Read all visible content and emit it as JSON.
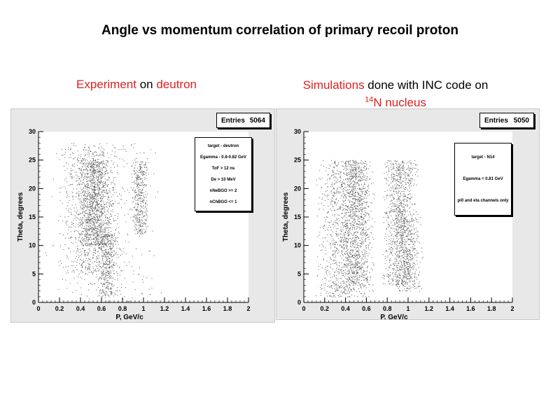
{
  "title": "Angle vs momentum correlation of primary recoil proton",
  "captions": {
    "left": {
      "highlight": "Experiment",
      "rest": " on ",
      "highlight2": "deutron"
    },
    "right": {
      "highlight": "Simulations",
      "rest": " done with INC code on",
      "sup": "14",
      "line2": "N nucleus"
    }
  },
  "colors": {
    "accent": "#e02020",
    "panel": "#e8e8e8",
    "plot": "#ffffff"
  },
  "chart_data": [
    {
      "type": "scatter",
      "entries_label": "Entries",
      "entries_value": "5064",
      "xlabel": "P, GeV/c",
      "ylabel": "Theta, degrees",
      "xlim": [
        0,
        2
      ],
      "ylim": [
        0,
        30
      ],
      "xticks": [
        "0",
        "0.2",
        "0.4",
        "0.6",
        "0.8",
        "1",
        "1.2",
        "1.4",
        "1.6",
        "1.8",
        "2"
      ],
      "yticks": [
        "0",
        "5",
        "10",
        "15",
        "20",
        "25",
        "30"
      ],
      "info": [
        "target - deutron",
        "Egamma - 0.8-0.82 GeV",
        "ToF > 12 ns",
        "De > 10 MeV",
        "nNeBGO >= 2",
        "nChBGO <= 1"
      ],
      "clusters": [
        {
          "x": [
            0.2,
            0.8
          ],
          "y": [
            5,
            27
          ],
          "n": 900
        },
        {
          "x": [
            0.35,
            0.7
          ],
          "y": [
            10,
            25
          ],
          "n": 900
        },
        {
          "x": [
            0.55,
            0.75
          ],
          "y": [
            1,
            12
          ],
          "n": 350
        },
        {
          "x": [
            0.88,
            1.05
          ],
          "y": [
            12,
            25
          ],
          "n": 400
        },
        {
          "x": [
            0.05,
            1.2
          ],
          "y": [
            0,
            28
          ],
          "n": 450
        }
      ]
    },
    {
      "type": "scatter",
      "entries_label": "Entries",
      "entries_value": "5050",
      "xlabel": "P, GeV/c",
      "ylabel": "Theta, degrees",
      "xlim": [
        0,
        2
      ],
      "ylim": [
        0,
        30
      ],
      "xticks": [
        "0",
        "0.2",
        "0.4",
        "0.6",
        "0.8",
        "1",
        "1.2",
        "1.4",
        "1.6",
        "1.8",
        "2"
      ],
      "yticks": [
        "0",
        "5",
        "10",
        "15",
        "20",
        "25",
        "30"
      ],
      "info": [
        "target - N14",
        "Egamma = 0.81 GeV",
        "pi0 and eta channels only"
      ],
      "clusters": [
        {
          "x": [
            0.1,
            0.7
          ],
          "y": [
            1,
            25
          ],
          "n": 1300
        },
        {
          "x": [
            0.35,
            0.65
          ],
          "y": [
            3,
            25
          ],
          "n": 700
        },
        {
          "x": [
            0.75,
            1.1
          ],
          "y": [
            3,
            25
          ],
          "n": 1100
        },
        {
          "x": [
            0.85,
            1.15
          ],
          "y": [
            2,
            15
          ],
          "n": 300
        }
      ]
    }
  ]
}
